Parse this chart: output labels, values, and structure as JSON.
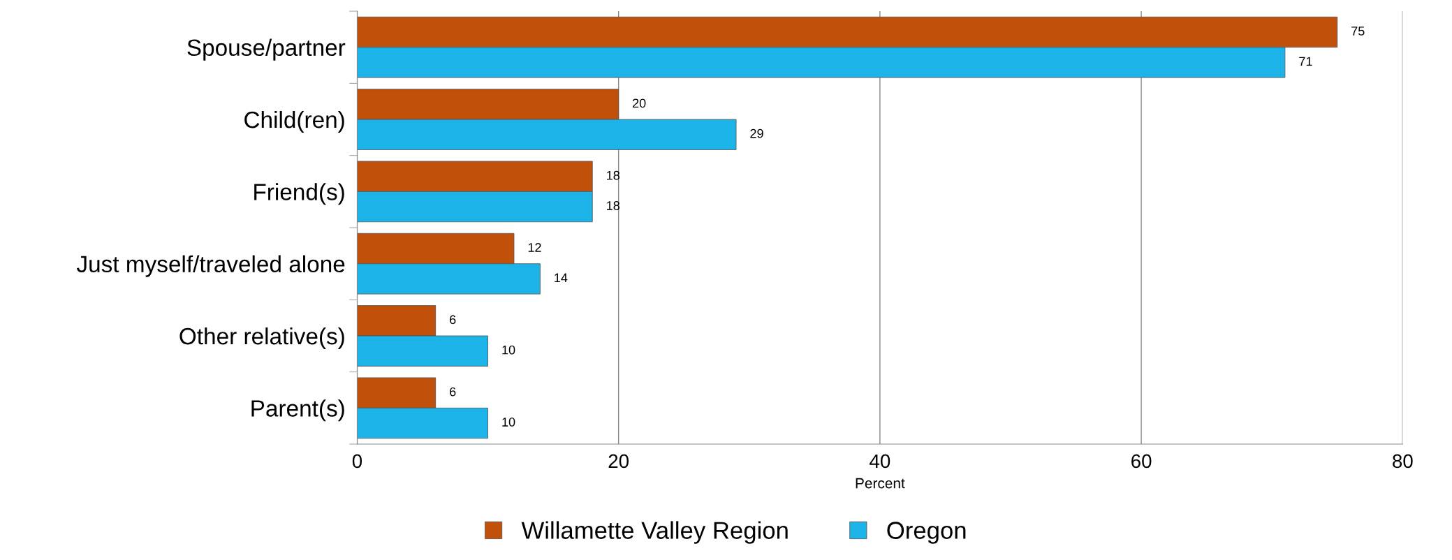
{
  "chart_data": {
    "type": "bar",
    "orientation": "horizontal",
    "xlabel": "Percent",
    "categories": [
      "Spouse/partner",
      "Child(ren)",
      "Friend(s)",
      "Just myself/traveled alone",
      "Other relative(s)",
      "Parent(s)"
    ],
    "series": [
      {
        "name": "Willamette Valley Region",
        "color": "#c0500a",
        "values": [
          75,
          20,
          18,
          12,
          6,
          6
        ]
      },
      {
        "name": "Oregon",
        "color": "#1cb4e8",
        "values": [
          71,
          29,
          18,
          14,
          10,
          10
        ]
      }
    ],
    "xlim": [
      0,
      80
    ],
    "xticks": [
      0,
      20,
      40,
      60,
      80
    ],
    "grid": "x",
    "legend": "bottom",
    "data_labels": true
  }
}
